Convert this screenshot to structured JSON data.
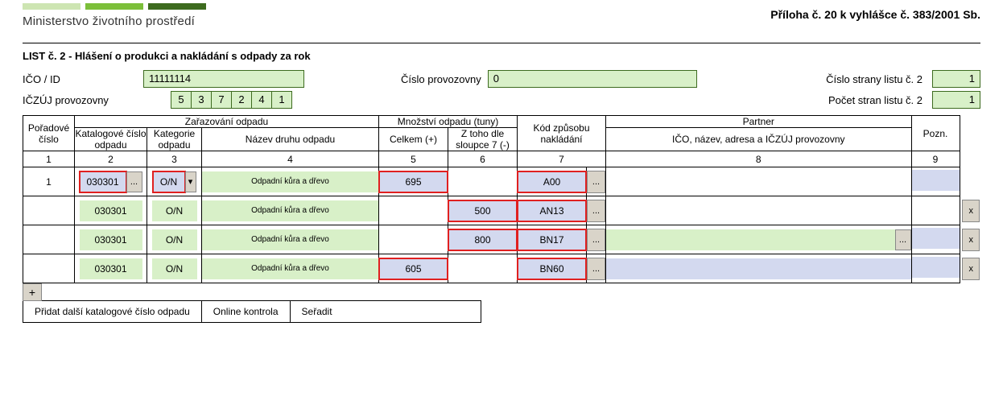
{
  "header": {
    "ministry": "Ministerstvo životního prostředí",
    "priloha": "Příloha č. 20 k vyhlášce č. 383/2001 Sb.",
    "logo_colors": [
      "#cde5b2",
      "#7cbf3a",
      "#3d6b1f"
    ]
  },
  "list": {
    "title": "LIST č. 2 - Hlášení o produkci a nakládání s odpady za rok",
    "ico_label": "IČO / ID",
    "ico_value": "11111114",
    "cislo_provozovny_label": "Číslo provozovny",
    "cislo_provozovny_value": "0",
    "cislo_strany_label": "Číslo strany listu č. 2",
    "cislo_strany_value": "1",
    "iczuj_label": "IČZÚJ provozovny",
    "iczuj_digits": [
      "5",
      "3",
      "7",
      "2",
      "4",
      "1"
    ],
    "pocet_stran_label": "Počet stran listu č. 2",
    "pocet_stran_value": "1"
  },
  "columns": {
    "poradove": "Pořadové číslo",
    "zarazovani": "Zařazování odpadu",
    "katalogove": "Katalogové číslo odpadu",
    "kategorie": "Kategorie odpadu",
    "nazev": "Název druhu odpadu",
    "mnozstvi": "Množství odpadu (tuny)",
    "celkem": "Celkem (+)",
    "ztoho": "Z toho dle sloupce 7 (-)",
    "kod": "Kód způsobu nakládání",
    "partner_hdr": "Partner",
    "partner_sub": "IČO, název, adresa a IČZÚJ provozovny",
    "pozn": "Pozn.",
    "nums": [
      "1",
      "2",
      "3",
      "4",
      "5",
      "6",
      "7",
      "8",
      "9"
    ]
  },
  "rows": [
    {
      "poradove": "1",
      "katalog": "030301",
      "kat_btn": "...",
      "kat_red": true,
      "kat_bg": "blue",
      "kategorie": "O/N",
      "kategorie_red": true,
      "kategorie_dd": true,
      "kategorie_bg": "blue",
      "nazev": "Odpadní kůra a dřevo",
      "celkem": "695",
      "celkem_red": true,
      "celkem_bg": "blue",
      "ztoho": "",
      "ztoho_red": false,
      "ztoho_bg": "",
      "kod": "A00",
      "kod_red": true,
      "kod_bg": "blue",
      "kod_btn": "...",
      "partner": "",
      "partner_btn": false,
      "partner_bg": "",
      "pozn_bg": "blue",
      "x": false
    },
    {
      "poradove": "",
      "katalog": "030301",
      "kat_btn": "",
      "kat_red": false,
      "kat_bg": "green",
      "kategorie": "O/N",
      "kategorie_red": false,
      "kategorie_dd": false,
      "kategorie_bg": "green",
      "nazev": "Odpadní kůra a dřevo",
      "celkem": "",
      "celkem_red": false,
      "celkem_bg": "",
      "ztoho": "500",
      "ztoho_red": true,
      "ztoho_bg": "blue",
      "kod": "AN13",
      "kod_red": true,
      "kod_bg": "blue",
      "kod_btn": "...",
      "partner": "",
      "partner_btn": false,
      "partner_bg": "",
      "pozn_bg": "",
      "x": true
    },
    {
      "poradove": "",
      "katalog": "030301",
      "kat_btn": "",
      "kat_red": false,
      "kat_bg": "green",
      "kategorie": "O/N",
      "kategorie_red": false,
      "kategorie_dd": false,
      "kategorie_bg": "green",
      "nazev": "Odpadní kůra a dřevo",
      "celkem": "",
      "celkem_red": false,
      "celkem_bg": "",
      "ztoho": "800",
      "ztoho_red": true,
      "ztoho_bg": "blue",
      "kod": "BN17",
      "kod_red": true,
      "kod_bg": "blue",
      "kod_btn": "...",
      "partner": "",
      "partner_btn": true,
      "partner_bg": "green",
      "pozn_bg": "blue",
      "x": true
    },
    {
      "poradove": "",
      "katalog": "030301",
      "kat_btn": "",
      "kat_red": false,
      "kat_bg": "green",
      "kategorie": "O/N",
      "kategorie_red": false,
      "kategorie_dd": false,
      "kategorie_bg": "green",
      "nazev": "Odpadní kůra a dřevo",
      "celkem": "605",
      "celkem_red": true,
      "celkem_bg": "blue",
      "ztoho": "",
      "ztoho_red": false,
      "ztoho_bg": "",
      "kod": "BN60",
      "kod_red": true,
      "kod_bg": "blue",
      "kod_btn": "...",
      "partner": "",
      "partner_btn": false,
      "partner_bg": "blue",
      "pozn_bg": "blue",
      "x": true
    }
  ],
  "buttons": {
    "plus": "+",
    "pridat": "Přidat další katalogové číslo odpadu",
    "online": "Online kontrola",
    "seradit": "Seřadit",
    "x": "x",
    "dots": "...",
    "dd": "▾"
  },
  "widths": {
    "poradove": 64,
    "katalog": 90,
    "kategorie": 68,
    "nazev": 220,
    "celkem": 86,
    "ztoho": 86,
    "kod": 86,
    "kodbtn": 24,
    "partner": 400,
    "pozn": 60,
    "x": 26
  },
  "colors": {
    "green_bg": "#d8f0c8",
    "blue_bg": "#d3d9ef",
    "red_border": "#e02020",
    "btn_bg": "#d9d4c9",
    "border": "#000000"
  }
}
